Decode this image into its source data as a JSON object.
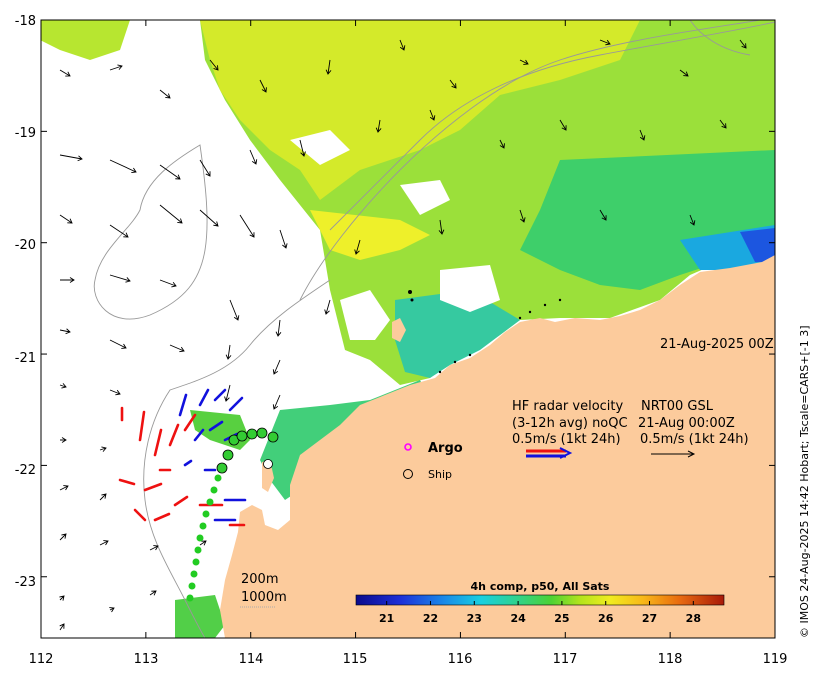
{
  "map": {
    "x_ticks": [
      "112",
      "113",
      "114",
      "115",
      "116",
      "117",
      "118",
      "119"
    ],
    "y_ticks": [
      "-18",
      "-19",
      "-20",
      "-21",
      "-22",
      "-23"
    ],
    "lon_range": [
      112,
      119
    ],
    "lat_range": [
      -23.55,
      -18
    ]
  },
  "annotations": {
    "date": "21-Aug-2025 00Z",
    "radar_line1": "HF radar velocity",
    "radar_line2": "(3-12h avg) noQC",
    "radar_line3": "0.5m/s (1kt 24h)",
    "nrt_line1": "NRT00 GSL",
    "nrt_line2": "21-Aug 00:00Z",
    "nrt_line3": "0.5m/s (1kt 24h)",
    "argo_label": "Argo",
    "ship_label": "Ship",
    "isobath_200": "200m",
    "isobath_1000": "1000m"
  },
  "colorbar": {
    "title": "4h comp, p50, All Sats",
    "ticks": [
      "21",
      "22",
      "23",
      "24",
      "25",
      "26",
      "27",
      "28"
    ],
    "range": [
      20.3,
      28.7
    ]
  },
  "credit": "© IMOS 24-Aug-2025 14:42 Hobart; Tscale=CARS+[-1 3]",
  "colors": {
    "land": "#fccb9c",
    "radar_red": "#ee1111",
    "radar_blue": "#1111dd",
    "ship_green": "#33cc33",
    "argo_magenta": "#ff00ff"
  }
}
